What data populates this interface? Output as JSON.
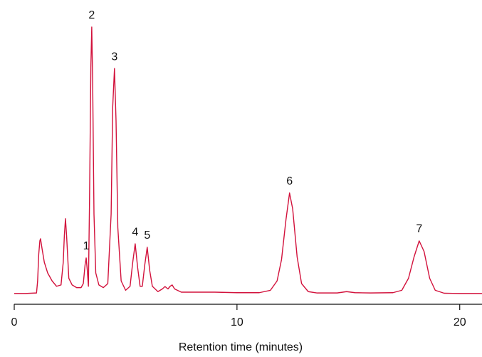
{
  "chart_data": {
    "type": "line",
    "xlabel": "Retention time (minutes)",
    "xlim": [
      0,
      21
    ],
    "xticks": [
      0,
      10,
      20
    ],
    "ylim": [
      0,
      100
    ],
    "series": [
      {
        "color": "#d2123c",
        "x": [
          0,
          0.5,
          1.0,
          1.05,
          1.1,
          1.15,
          1.18,
          1.25,
          1.35,
          1.5,
          1.7,
          1.9,
          2.1,
          2.2,
          2.25,
          2.3,
          2.35,
          2.45,
          2.6,
          2.8,
          3.0,
          3.1,
          3.18,
          3.23,
          3.28,
          3.33,
          3.38,
          3.44,
          3.48,
          3.52,
          3.58,
          3.66,
          3.8,
          4.0,
          4.2,
          4.35,
          4.42,
          4.5,
          4.57,
          4.65,
          4.8,
          5.0,
          5.2,
          5.32,
          5.43,
          5.54,
          5.65,
          5.75,
          5.86,
          5.97,
          6.08,
          6.2,
          6.45,
          6.65,
          6.77,
          6.9,
          7.0,
          7.09,
          7.2,
          7.5,
          9,
          10,
          11,
          11.5,
          11.8,
          12.0,
          12.2,
          12.36,
          12.5,
          12.7,
          12.9,
          13.2,
          13.6,
          14.5,
          14.92,
          15.3,
          16,
          17,
          17.4,
          17.7,
          17.95,
          18.18,
          18.4,
          18.65,
          18.9,
          19.3,
          20,
          21
        ],
        "values": [
          0.3,
          0.3,
          0.5,
          5,
          15,
          20,
          20.8,
          17,
          12,
          8,
          5,
          3,
          3.5,
          12,
          22,
          28.3,
          22,
          6,
          3.5,
          2.5,
          2.5,
          4,
          11,
          13.6,
          9,
          3,
          35,
          85,
          100,
          80,
          30,
          8,
          3.5,
          2.5,
          4,
          30,
          70,
          84.5,
          65,
          25,
          5,
          1.5,
          3,
          12,
          18.9,
          10,
          3,
          3,
          11,
          17.6,
          9,
          3,
          1,
          2,
          2.9,
          2,
          3,
          3.5,
          2,
          0.8,
          0.8,
          0.6,
          0.6,
          1.5,
          5,
          13,
          28,
          37.9,
          32,
          14,
          4,
          1,
          0.5,
          0.5,
          1,
          0.6,
          0.5,
          0.6,
          1.5,
          6,
          14,
          20,
          16,
          6,
          1.5,
          0.4,
          0.3,
          0.3
        ]
      }
    ],
    "annotations": [
      {
        "text": "1",
        "x": 3.23,
        "y": 13.6
      },
      {
        "text": "2",
        "x": 3.48,
        "y": 100
      },
      {
        "text": "3",
        "x": 4.5,
        "y": 84.5
      },
      {
        "text": "4",
        "x": 5.43,
        "y": 18.9
      },
      {
        "text": "5",
        "x": 5.97,
        "y": 17.6
      },
      {
        "text": "6",
        "x": 12.36,
        "y": 37.9
      },
      {
        "text": "7",
        "x": 18.18,
        "y": 20
      }
    ]
  }
}
